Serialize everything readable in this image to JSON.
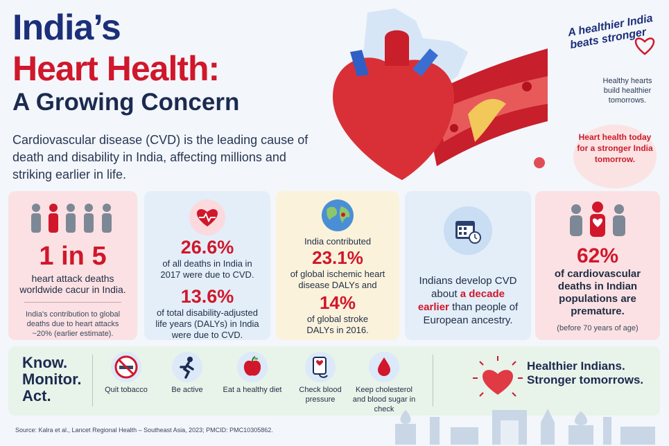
{
  "header": {
    "title_line1": "India’s",
    "title_line2": "Heart Health:",
    "title_line3": "A Growing Concern",
    "intro": "Cardiovascular disease (CVD) is the leading cause of death and disability in India, affecting millions and striking earlier in life."
  },
  "side": {
    "tagline": "A healthier India beats stronger",
    "note": "Healthy hearts build healthier tomorrows.",
    "circle_text": "Heart health today for a stronger India tomorrow."
  },
  "cards": {
    "c1": {
      "stat": "1 in 5",
      "text": "heart attack deaths worldwide cacur in India.",
      "note": "India's contribution to global deaths due to heart attacks ~20% (earlier estimate)."
    },
    "c2": {
      "stat1": "26.6%",
      "text1": "of all deaths in India in 2017 were due to CVD.",
      "stat2": "13.6%",
      "text2": "of total disability-adjusted life years (DALYs) in India were due to CVD."
    },
    "c3": {
      "intro": "India contributed",
      "stat1": "23.1%",
      "text1": "of global ischemic heart disease DALYs and",
      "stat2": "14%",
      "text2": "of global stroke DALYs in 2016."
    },
    "c4": {
      "text_a": "Indians develop CVD about",
      "highlight": "a decade earlier",
      "text_b": "than people of European ancestry."
    },
    "c5": {
      "stat": "62%",
      "text": "of cardiovascular deaths in Indian populations are premature.",
      "note": "(before 70 years of age)"
    }
  },
  "actions": {
    "heading_line1": "Know.",
    "heading_line2": "Monitor.",
    "heading_line3": "Act.",
    "items": [
      {
        "label": "Quit tobacco",
        "icon": "no-smoking-icon"
      },
      {
        "label": "Be active",
        "icon": "running-icon"
      },
      {
        "label": "Eat a healthy diet",
        "icon": "apple-icon"
      },
      {
        "label": "Check blood pressure",
        "icon": "blood-pressure-icon"
      },
      {
        "label": "Keep cholesterol and blood sugar in check",
        "icon": "blood-drop-icon"
      }
    ],
    "slogan_line1": "Healthier Indians.",
    "slogan_line2": "Stronger tomorrows."
  },
  "source": "Source: Kalra et al., Lancet Regional Health – Southeast Asia, 2023; PMCID: PMC10305862.",
  "colors": {
    "navy": "#1c2f7a",
    "red": "#d0172b",
    "pink_card": "#fbe1e3",
    "blue_card": "#e3eef9",
    "yellow_card": "#fbf2dc",
    "green_bar": "#e8f3ea"
  }
}
